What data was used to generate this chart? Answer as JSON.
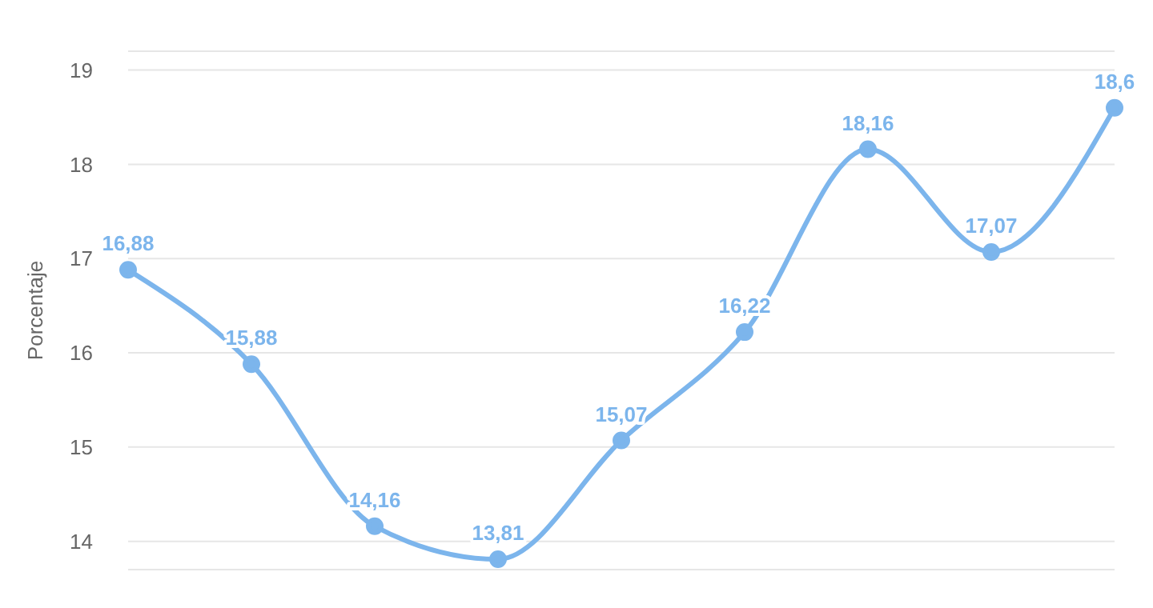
{
  "chart_data": {
    "type": "line",
    "ylabel": "Porcentaje",
    "categories": [
      null,
      null,
      null,
      null,
      null,
      null,
      null,
      null,
      null
    ],
    "series": [
      {
        "color": "#7cb5ec",
        "values": [
          16.88,
          15.88,
          14.16,
          13.81,
          15.07,
          16.22,
          18.16,
          17.07,
          18.6
        ],
        "value_labels": [
          "16,88",
          "15,88",
          "14,16",
          "13,81",
          "15,07",
          "16,22",
          "18,16",
          "17,07",
          "18,6"
        ]
      }
    ],
    "ylim": [
      13.7,
      19.2
    ],
    "yticks": [
      14,
      15,
      16,
      17,
      18,
      19
    ],
    "grid": "y",
    "tick_labels": "y",
    "marker": "circle",
    "line_style": "solid"
  }
}
